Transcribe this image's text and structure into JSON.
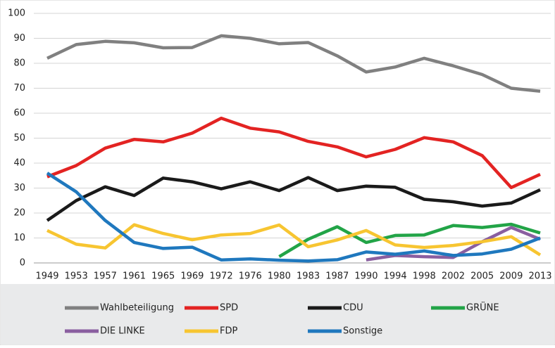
{
  "chart_data": {
    "type": "line",
    "categories": [
      "1949",
      "1953",
      "1957",
      "1961",
      "1965",
      "1969",
      "1972",
      "1976",
      "1980",
      "1983",
      "1987",
      "1990",
      "1994",
      "1998",
      "2002",
      "2005",
      "2009",
      "2013"
    ],
    "series": [
      {
        "name": "Wahlbeteiligung",
        "color": "#808080",
        "values": [
          82,
          87.5,
          88.8,
          88.2,
          86.2,
          86.3,
          91,
          90,
          87.8,
          88.3,
          83,
          76.5,
          78.5,
          82,
          79,
          75.5,
          70,
          68.8
        ]
      },
      {
        "name": "SPD",
        "color": "#e32322",
        "values": [
          34.5,
          39,
          46,
          49.5,
          48.5,
          52,
          58,
          54,
          52.5,
          48.7,
          46.5,
          42.5,
          45.5,
          50.2,
          48.5,
          43,
          30.2,
          35.5
        ]
      },
      {
        "name": "CDU",
        "color": "#1a1a1a",
        "values": [
          17,
          25,
          30.5,
          27,
          34,
          32.5,
          29.7,
          32.5,
          29,
          34.2,
          29,
          30.8,
          30.3,
          25.5,
          24.5,
          22.8,
          24,
          29.3
        ]
      },
      {
        "name": "GRÜNE",
        "color": "#22a447",
        "values": [
          null,
          null,
          null,
          null,
          null,
          null,
          null,
          null,
          2.5,
          9.5,
          14.5,
          8.2,
          11,
          11.2,
          15,
          14.2,
          15.5,
          12
        ]
      },
      {
        "name": "DIE LINKE",
        "color": "#8a5fa0",
        "values": [
          null,
          null,
          null,
          null,
          null,
          null,
          null,
          null,
          null,
          null,
          null,
          1.2,
          3,
          2.5,
          2.2,
          8.5,
          14.2,
          9.5
        ]
      },
      {
        "name": "FDP",
        "color": "#f7c531",
        "values": [
          13,
          7.5,
          6,
          15.3,
          11.8,
          9.3,
          11.2,
          11.8,
          15.2,
          6.5,
          9.2,
          13,
          7.2,
          6.2,
          7,
          8.5,
          10.5,
          3.2
        ]
      },
      {
        "name": "Sonstige",
        "color": "#1f78be",
        "values": [
          36,
          28.5,
          17,
          8.2,
          5.8,
          6.3,
          1.2,
          1.6,
          1.1,
          0.8,
          1.3,
          4.4,
          3.5,
          4.8,
          3,
          3.6,
          5.5,
          10
        ]
      }
    ],
    "ylim": [
      0,
      100
    ],
    "yticks": [
      0,
      10,
      20,
      30,
      40,
      50,
      60,
      70,
      80,
      90,
      100
    ],
    "grid": true,
    "legend": "bottom"
  }
}
